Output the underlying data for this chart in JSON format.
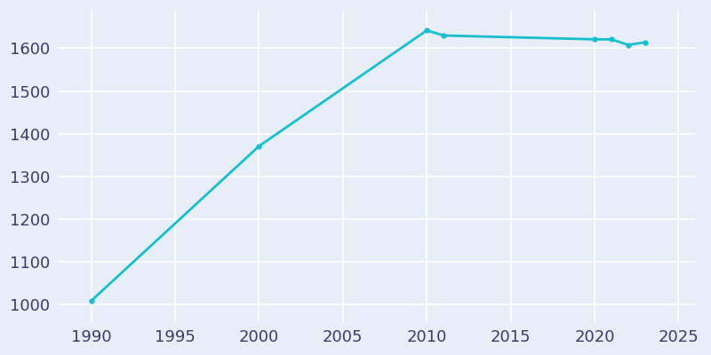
{
  "years": [
    1990,
    2000,
    2010,
    2011,
    2020,
    2021,
    2022,
    2023
  ],
  "population": [
    1009,
    1371,
    1642,
    1630,
    1621,
    1621,
    1608,
    1614
  ],
  "line_color": "#17becf",
  "marker": "o",
  "marker_size": 3.5,
  "line_width": 2,
  "background_color": "#e8eef7",
  "grid_color": "#ffffff",
  "xlim": [
    1988,
    2026
  ],
  "ylim": [
    960,
    1690
  ],
  "xticks": [
    1990,
    1995,
    2000,
    2005,
    2010,
    2015,
    2020,
    2025
  ],
  "yticks": [
    1000,
    1100,
    1200,
    1300,
    1400,
    1500,
    1600
  ],
  "tick_label_color": "#3a3a6e",
  "tick_fontsize": 13
}
